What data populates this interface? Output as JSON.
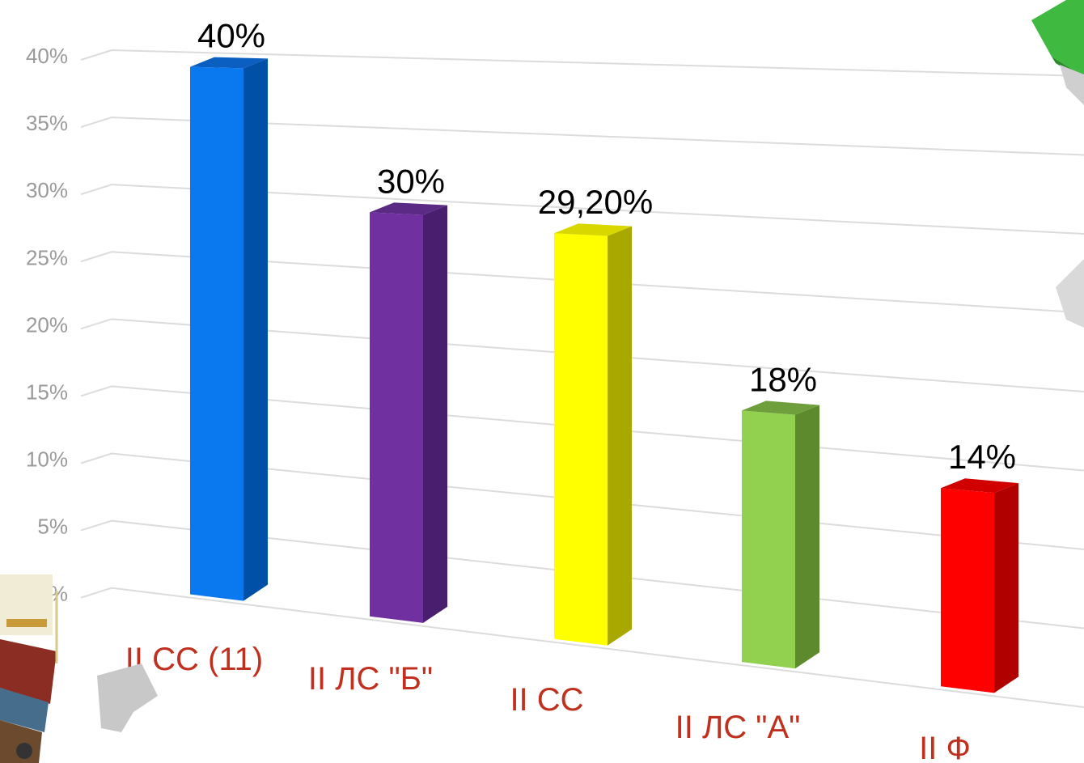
{
  "chart_data": {
    "type": "bar",
    "categories": [
      "II СС (11)",
      "II ЛС \"Б\"",
      "II СС",
      "II ЛС \"А\"",
      "II Ф"
    ],
    "values": [
      40,
      30,
      29.2,
      18,
      14
    ],
    "data_labels": [
      "40%",
      "30%",
      "29,20%",
      "18%",
      "14%"
    ],
    "y_ticks": [
      "0%",
      "5%",
      "10%",
      "15%",
      "20%",
      "25%",
      "30%",
      "35%",
      "40%"
    ],
    "ylim": [
      0,
      40
    ],
    "grid": true,
    "legend": "none",
    "colors": {
      "bars": [
        "#0a78ee",
        "#7030a0",
        "#ffff00",
        "#92d050",
        "#ff0000"
      ],
      "bar_sides": [
        "#0050a8",
        "#4a1e6e",
        "#a8a800",
        "#5e8a2e",
        "#b00000"
      ],
      "bar_tops": [
        "#0a5fc0",
        "#5b2a85",
        "#d8d800",
        "#6f9e3c",
        "#d00000"
      ],
      "category_text": "#c0301e",
      "tick_text": "#9a9a9a"
    }
  },
  "decorations": {
    "top_right": "green-block-figure",
    "bottom_left": "books-stack-image"
  }
}
